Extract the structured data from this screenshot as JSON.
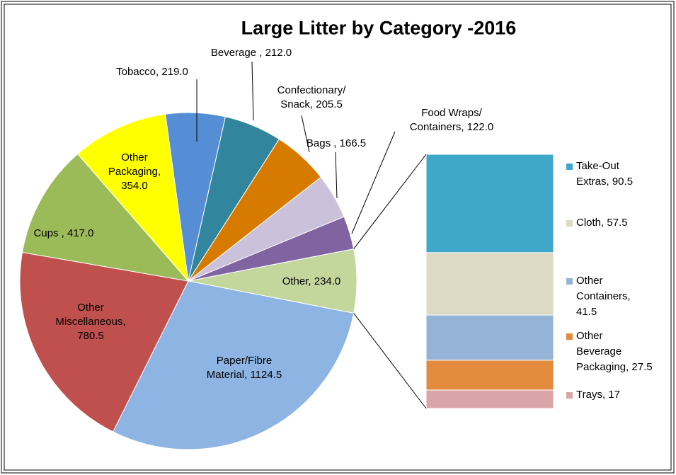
{
  "chart_data": {
    "type": "pie",
    "title": "Large Litter by Category -2016",
    "labels": [
      "Other, 234.0",
      "Paper/Fibre\nMaterial, 1124.5",
      "Other\nMiscellaneous,\n780.5",
      "Cups , 417.0",
      "Other\nPackaging,\n354.0",
      "Tobacco, 219.0",
      "Beverage , 212.0",
      "Confectionary/\nSnack, 205.5",
      "Bags , 166.5",
      "Food Wraps/\nContainers, 122.0"
    ],
    "values": [
      234,
      1124.5,
      780.5,
      417,
      354,
      219,
      212,
      205.5,
      166.5,
      122
    ],
    "colors": [
      "#c3d69b",
      "#8eb4e3",
      "#c0504d",
      "#9bbb59",
      "#ffff00",
      "#558ed5",
      "#31859c",
      "#d67b00",
      "#ccc1da",
      "#8064a2"
    ],
    "secondary": {
      "type": "bar",
      "labels": [
        "Take-Out\nExtras, 90.5",
        "Cloth, 57.5",
        "Other\nContainers,\n41.5",
        "Other\nBeverage\nPackaging, 27.5",
        "Trays, 17"
      ],
      "values": [
        90.5,
        57.5,
        41.5,
        27.5,
        17
      ],
      "colors": [
        "#3fa8c8",
        "#ddd9c3",
        "#95b3d7",
        "#e28a3e",
        "#d9a5a8"
      ]
    }
  }
}
